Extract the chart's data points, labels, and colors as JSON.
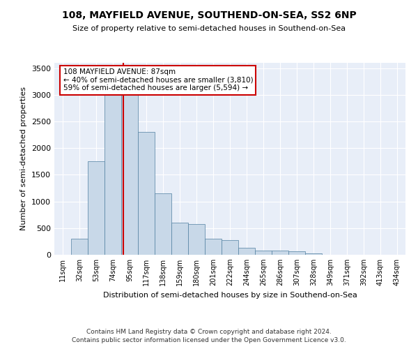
{
  "title": "108, MAYFIELD AVENUE, SOUTHEND-ON-SEA, SS2 6NP",
  "subtitle": "Size of property relative to semi-detached houses in Southend-on-Sea",
  "xlabel": "Distribution of semi-detached houses by size in Southend-on-Sea",
  "ylabel": "Number of semi-detached properties",
  "footer1": "Contains HM Land Registry data © Crown copyright and database right 2024.",
  "footer2": "Contains public sector information licensed under the Open Government Licence v3.0.",
  "annotation_line1": "108 MAYFIELD AVENUE: 87sqm",
  "annotation_line2": "← 40% of semi-detached houses are smaller (3,810)",
  "annotation_line3": "59% of semi-detached houses are larger (5,594) →",
  "property_size": 87,
  "bar_color": "#c8d8e8",
  "bar_edge_color": "#5080a0",
  "vline_color": "#cc0000",
  "annotation_box_edge": "#cc0000",
  "annotation_box_fill": "white",
  "background_color": "#e8eef8",
  "categories": [
    "11sqm",
    "32sqm",
    "53sqm",
    "74sqm",
    "95sqm",
    "117sqm",
    "138sqm",
    "159sqm",
    "180sqm",
    "201sqm",
    "222sqm",
    "244sqm",
    "265sqm",
    "286sqm",
    "307sqm",
    "328sqm",
    "349sqm",
    "371sqm",
    "392sqm",
    "413sqm",
    "434sqm"
  ],
  "bin_edges": [
    0,
    21,
    42,
    63,
    84,
    105,
    126,
    147,
    168,
    189,
    210,
    231,
    252,
    273,
    294,
    315,
    336,
    357,
    378,
    399,
    420,
    441
  ],
  "values": [
    5,
    300,
    1750,
    3000,
    3000,
    2300,
    1150,
    600,
    580,
    295,
    280,
    130,
    80,
    78,
    60,
    28,
    5,
    3,
    2,
    1,
    1
  ],
  "ylim": [
    0,
    3600
  ],
  "yticks": [
    0,
    500,
    1000,
    1500,
    2000,
    2500,
    3000,
    3500
  ]
}
